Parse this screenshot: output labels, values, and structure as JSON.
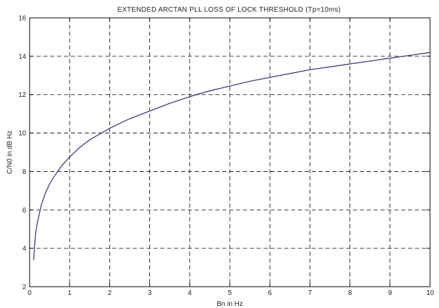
{
  "chart_data": {
    "type": "line",
    "title": "EXTENDED ARCTAN PLL LOSS OF LOCK THRESHOLD (Tp=10ms)",
    "xlabel": "Bn in Hz",
    "ylabel": "C/N0 in dB Hz",
    "xlim": [
      0,
      10
    ],
    "ylim": [
      2,
      16
    ],
    "xticks": [
      "0",
      "1",
      "2",
      "3",
      "4",
      "5",
      "6",
      "7",
      "8",
      "9",
      "10"
    ],
    "yticks": [
      "2",
      "4",
      "6",
      "8",
      "10",
      "12",
      "14",
      "16"
    ],
    "grid": true,
    "series": [
      {
        "color": "#2a2a7a",
        "x": [
          0.1,
          0.15,
          0.2,
          0.3,
          0.4,
          0.5,
          0.6,
          0.8,
          1.0,
          1.25,
          1.5,
          1.75,
          2.0,
          2.5,
          3.0,
          3.5,
          4.0,
          4.5,
          5.0,
          5.5,
          6.0,
          6.5,
          7.0,
          7.5,
          8.0,
          8.5,
          9.0,
          9.5,
          10.0
        ],
        "y": [
          3.4,
          4.8,
          5.4,
          6.3,
          6.9,
          7.35,
          7.7,
          8.3,
          8.75,
          9.25,
          9.65,
          9.95,
          10.25,
          10.75,
          11.15,
          11.55,
          11.9,
          12.2,
          12.45,
          12.7,
          12.9,
          13.1,
          13.3,
          13.45,
          13.6,
          13.75,
          13.9,
          14.05,
          14.2
        ]
      }
    ]
  }
}
